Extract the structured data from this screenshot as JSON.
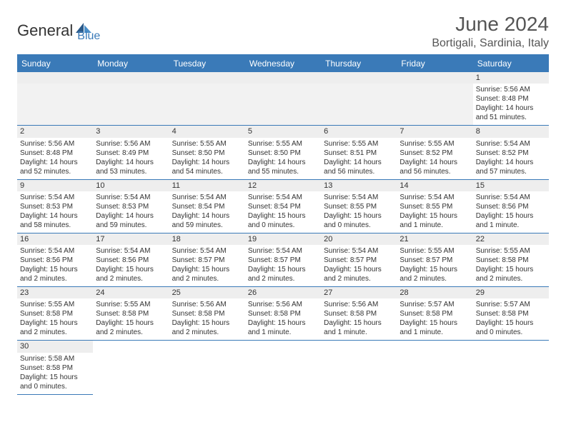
{
  "branding": {
    "text_general": "General",
    "text_blue": "Blue",
    "icon_color_dark": "#2a5a8a",
    "icon_color_light": "#4b8fc9"
  },
  "title": "June 2024",
  "location": "Bortigali, Sardinia, Italy",
  "colors": {
    "header_bg": "#3a7ab8",
    "header_text": "#ffffff",
    "border": "#3a7ab8",
    "daynum_bg": "#eeeeee",
    "empty_bg": "#f2f2f2",
    "text": "#333333",
    "title_text": "#555555"
  },
  "day_headers": [
    "Sunday",
    "Monday",
    "Tuesday",
    "Wednesday",
    "Thursday",
    "Friday",
    "Saturday"
  ],
  "leading_empty": 6,
  "days": [
    {
      "n": 1,
      "sunrise": "5:56 AM",
      "sunset": "8:48 PM",
      "day_h": 14,
      "day_m": 51
    },
    {
      "n": 2,
      "sunrise": "5:56 AM",
      "sunset": "8:48 PM",
      "day_h": 14,
      "day_m": 52
    },
    {
      "n": 3,
      "sunrise": "5:56 AM",
      "sunset": "8:49 PM",
      "day_h": 14,
      "day_m": 53
    },
    {
      "n": 4,
      "sunrise": "5:55 AM",
      "sunset": "8:50 PM",
      "day_h": 14,
      "day_m": 54
    },
    {
      "n": 5,
      "sunrise": "5:55 AM",
      "sunset": "8:50 PM",
      "day_h": 14,
      "day_m": 55
    },
    {
      "n": 6,
      "sunrise": "5:55 AM",
      "sunset": "8:51 PM",
      "day_h": 14,
      "day_m": 56
    },
    {
      "n": 7,
      "sunrise": "5:55 AM",
      "sunset": "8:52 PM",
      "day_h": 14,
      "day_m": 56
    },
    {
      "n": 8,
      "sunrise": "5:54 AM",
      "sunset": "8:52 PM",
      "day_h": 14,
      "day_m": 57
    },
    {
      "n": 9,
      "sunrise": "5:54 AM",
      "sunset": "8:53 PM",
      "day_h": 14,
      "day_m": 58
    },
    {
      "n": 10,
      "sunrise": "5:54 AM",
      "sunset": "8:53 PM",
      "day_h": 14,
      "day_m": 59
    },
    {
      "n": 11,
      "sunrise": "5:54 AM",
      "sunset": "8:54 PM",
      "day_h": 14,
      "day_m": 59
    },
    {
      "n": 12,
      "sunrise": "5:54 AM",
      "sunset": "8:54 PM",
      "day_h": 15,
      "day_m": 0
    },
    {
      "n": 13,
      "sunrise": "5:54 AM",
      "sunset": "8:55 PM",
      "day_h": 15,
      "day_m": 0
    },
    {
      "n": 14,
      "sunrise": "5:54 AM",
      "sunset": "8:55 PM",
      "day_h": 15,
      "day_m": 1
    },
    {
      "n": 15,
      "sunrise": "5:54 AM",
      "sunset": "8:56 PM",
      "day_h": 15,
      "day_m": 1
    },
    {
      "n": 16,
      "sunrise": "5:54 AM",
      "sunset": "8:56 PM",
      "day_h": 15,
      "day_m": 2
    },
    {
      "n": 17,
      "sunrise": "5:54 AM",
      "sunset": "8:56 PM",
      "day_h": 15,
      "day_m": 2
    },
    {
      "n": 18,
      "sunrise": "5:54 AM",
      "sunset": "8:57 PM",
      "day_h": 15,
      "day_m": 2
    },
    {
      "n": 19,
      "sunrise": "5:54 AM",
      "sunset": "8:57 PM",
      "day_h": 15,
      "day_m": 2
    },
    {
      "n": 20,
      "sunrise": "5:54 AM",
      "sunset": "8:57 PM",
      "day_h": 15,
      "day_m": 2
    },
    {
      "n": 21,
      "sunrise": "5:55 AM",
      "sunset": "8:57 PM",
      "day_h": 15,
      "day_m": 2
    },
    {
      "n": 22,
      "sunrise": "5:55 AM",
      "sunset": "8:58 PM",
      "day_h": 15,
      "day_m": 2
    },
    {
      "n": 23,
      "sunrise": "5:55 AM",
      "sunset": "8:58 PM",
      "day_h": 15,
      "day_m": 2
    },
    {
      "n": 24,
      "sunrise": "5:55 AM",
      "sunset": "8:58 PM",
      "day_h": 15,
      "day_m": 2
    },
    {
      "n": 25,
      "sunrise": "5:56 AM",
      "sunset": "8:58 PM",
      "day_h": 15,
      "day_m": 2
    },
    {
      "n": 26,
      "sunrise": "5:56 AM",
      "sunset": "8:58 PM",
      "day_h": 15,
      "day_m": 1
    },
    {
      "n": 27,
      "sunrise": "5:56 AM",
      "sunset": "8:58 PM",
      "day_h": 15,
      "day_m": 1
    },
    {
      "n": 28,
      "sunrise": "5:57 AM",
      "sunset": "8:58 PM",
      "day_h": 15,
      "day_m": 1
    },
    {
      "n": 29,
      "sunrise": "5:57 AM",
      "sunset": "8:58 PM",
      "day_h": 15,
      "day_m": 0
    },
    {
      "n": 30,
      "sunrise": "5:58 AM",
      "sunset": "8:58 PM",
      "day_h": 15,
      "day_m": 0
    }
  ],
  "labels": {
    "sunrise": "Sunrise:",
    "sunset": "Sunset:",
    "daylight": "Daylight:",
    "hours": "hours",
    "and": "and",
    "minute": "minute.",
    "minutes": "minutes."
  }
}
